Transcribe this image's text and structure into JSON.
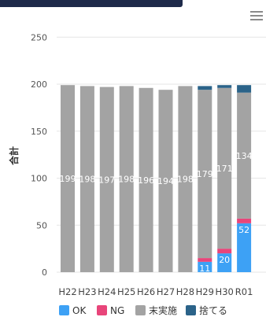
{
  "menu": {
    "icon": "hamburger-menu-icon"
  },
  "chart_data": {
    "type": "bar",
    "stacked": true,
    "title": "",
    "xlabel": "",
    "ylabel": "合計",
    "ylim": [
      0,
      250
    ],
    "yticks": [
      0,
      50,
      100,
      150,
      200,
      250
    ],
    "grid": true,
    "legend_position": "bottom",
    "categories": [
      "H22",
      "H23",
      "H24",
      "H25",
      "H26",
      "H27",
      "H28",
      "H29",
      "H30",
      "R01"
    ],
    "series": [
      {
        "name": "OK",
        "color": "#3da1f5",
        "values": [
          0,
          0,
          0,
          0,
          0,
          0,
          0,
          11,
          20,
          52
        ],
        "labels": [
          "",
          "",
          "",
          "",
          "",
          "",
          "",
          "11",
          "20",
          "52"
        ]
      },
      {
        "name": "NG",
        "color": "#e8457a",
        "values": [
          0,
          0,
          0,
          0,
          0,
          0,
          0,
          4,
          5,
          5
        ],
        "labels": [
          "",
          "",
          "",
          "",
          "",
          "",
          "",
          "",
          "",
          ""
        ]
      },
      {
        "name": "末実施",
        "color": "#a3a3a3",
        "values": [
          199,
          198,
          197,
          198,
          196,
          194,
          198,
          179,
          171,
          134
        ],
        "labels": [
          "199",
          "198",
          "197",
          "198",
          "196",
          "194",
          "198",
          "179",
          "171",
          "134"
        ]
      },
      {
        "name": "捨てる",
        "color": "#2b6389",
        "values": [
          0,
          0,
          0,
          0,
          0,
          0,
          0,
          4,
          3,
          8
        ],
        "labels": [
          "",
          "",
          "",
          "",
          "",
          "",
          "",
          "",
          "",
          ""
        ]
      }
    ]
  }
}
